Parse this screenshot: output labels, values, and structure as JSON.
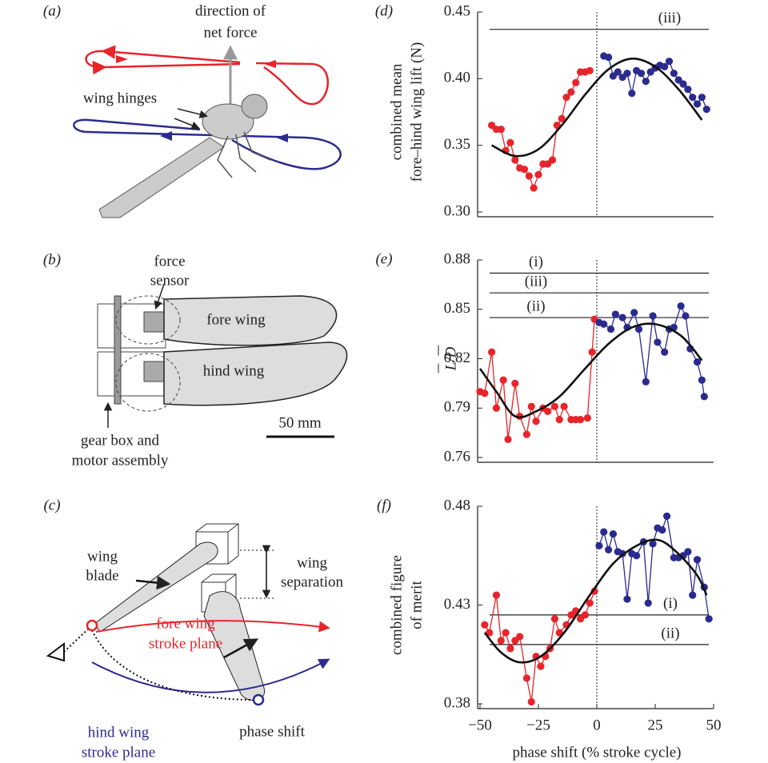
{
  "diagrams": {
    "a": {
      "label": "(a)",
      "force_line1": "direction of",
      "force_line2": "net force",
      "hinges": "wing hinges"
    },
    "b": {
      "label": "(b)",
      "sensor_line1": "force",
      "sensor_line2": "sensor",
      "fore": "fore wing",
      "hind": "hind wing",
      "scale": "50 mm",
      "gear_line1": "gear box and",
      "gear_line2": "motor assembly"
    },
    "c": {
      "label": "(c)",
      "blade_line1": "wing",
      "blade_line2": "blade",
      "sep_line1": "wing",
      "sep_line2": "separation",
      "fore_line1": "fore wing",
      "fore_line2": "stroke plane",
      "hind_line1": "hind wing",
      "hind_line2": "stroke plane",
      "phase": "phase shift"
    }
  },
  "chart_data": [
    {
      "type": "line",
      "panel_label": "(d)",
      "ylabel": [
        "combined mean",
        "fore–hind wing lift (N)"
      ],
      "xlim": [
        -50,
        50
      ],
      "ylim": [
        0.3,
        0.45
      ],
      "yticks": [
        {
          "value": 0.3,
          "label": "0.30"
        },
        0.35,
        {
          "value": 0.4,
          "label": "0.40"
        },
        0.45
      ],
      "vline": 0,
      "hlines": [
        {
          "label": "(iii)",
          "value": 0.437
        }
      ],
      "series": [
        {
          "color": "#e8242b",
          "markers": true,
          "x": [
            -45,
            -43,
            -41,
            -39,
            -37,
            -35,
            -33,
            -31,
            -29,
            -27,
            -25,
            -23,
            -21,
            -19,
            -17,
            -15,
            -13,
            -11,
            -9,
            -7,
            -5,
            -3
          ],
          "values": [
            0.365,
            0.362,
            0.362,
            0.346,
            0.352,
            0.339,
            0.333,
            0.332,
            0.327,
            0.318,
            0.328,
            0.336,
            0.336,
            0.339,
            0.365,
            0.37,
            0.386,
            0.39,
            0.397,
            0.405,
            0.405,
            0.406
          ]
        },
        {
          "color": "#2b2b8f",
          "markers": true,
          "x": [
            3,
            5,
            7,
            9,
            11,
            13,
            15,
            17,
            19,
            21,
            23,
            25,
            27,
            29,
            31,
            33,
            35,
            37,
            39,
            41,
            43,
            45,
            47
          ],
          "values": [
            0.417,
            0.416,
            0.402,
            0.405,
            0.401,
            0.404,
            0.389,
            0.406,
            0.404,
            0.398,
            0.405,
            0.408,
            0.41,
            0.409,
            0.413,
            0.404,
            0.399,
            0.396,
            0.392,
            0.386,
            0.381,
            0.386,
            0.377
          ]
        },
        {
          "color": "#111111",
          "markers": false,
          "x": [
            -45,
            -35,
            -25,
            -15,
            -5,
            5,
            15,
            25,
            35,
            45
          ],
          "values": [
            0.35,
            0.342,
            0.347,
            0.365,
            0.388,
            0.407,
            0.415,
            0.409,
            0.392,
            0.369
          ]
        }
      ]
    },
    {
      "type": "line",
      "panel_label": "(e)",
      "ylabel": [
        "L/D"
      ],
      "xlim": [
        -50,
        50
      ],
      "ylim": [
        0.76,
        0.88
      ],
      "yticks": [
        0.76,
        0.79,
        0.82,
        0.85,
        0.88
      ],
      "vline": 0,
      "hlines": [
        {
          "label": "(i)",
          "value": 0.872
        },
        {
          "label": "(iii)",
          "value": 0.86
        },
        {
          "label": "(ii)",
          "value": 0.845
        }
      ],
      "series": [
        {
          "color": "#e8242b",
          "markers": true,
          "x": [
            -50,
            -48,
            -45,
            -43,
            -40,
            -38,
            -35,
            -33,
            -30,
            -28,
            -26,
            -23,
            -21,
            -18,
            -16,
            -14,
            -11,
            -9,
            -7,
            -4,
            -2,
            -1
          ],
          "values": [
            0.8,
            0.799,
            0.824,
            0.79,
            0.807,
            0.771,
            0.805,
            0.785,
            0.774,
            0.791,
            0.782,
            0.79,
            0.788,
            0.791,
            0.783,
            0.791,
            0.783,
            0.783,
            0.783,
            0.784,
            0.824,
            0.844
          ]
        },
        {
          "color": "#2b2b8f",
          "markers": true,
          "x": [
            1,
            3,
            6,
            8,
            11,
            13,
            16,
            18,
            21,
            24,
            26,
            29,
            31,
            33,
            36,
            38,
            40,
            43,
            45,
            46
          ],
          "values": [
            0.842,
            0.841,
            0.838,
            0.847,
            0.845,
            0.839,
            0.848,
            0.838,
            0.806,
            0.846,
            0.83,
            0.824,
            0.838,
            0.839,
            0.852,
            0.846,
            0.826,
            0.818,
            0.807,
            0.797
          ]
        },
        {
          "color": "#111111",
          "markers": false,
          "x": [
            -50,
            -43,
            -35,
            -26,
            -16,
            -5,
            5,
            15,
            25,
            36,
            45
          ],
          "values": [
            0.814,
            0.8,
            0.785,
            0.788,
            0.797,
            0.814,
            0.829,
            0.839,
            0.841,
            0.834,
            0.819
          ]
        }
      ]
    },
    {
      "type": "line",
      "panel_label": "(f)",
      "ylabel": [
        "combined figure",
        "of merit"
      ],
      "xlabel": "phase shift (% stroke cycle)",
      "xlim": [
        -50,
        50
      ],
      "ylim": [
        0.38,
        0.48
      ],
      "xticks": [
        {
          "value": -50,
          "label": "−50"
        },
        {
          "value": -25,
          "label": "−25"
        },
        0,
        25,
        50
      ],
      "yticks": [
        0.38,
        0.43,
        0.48
      ],
      "vline": 0,
      "hlines": [
        {
          "label": "(i)",
          "value": 0.425
        },
        {
          "label": "(ii)",
          "value": 0.41
        }
      ],
      "series": [
        {
          "color": "#e8242b",
          "markers": true,
          "x": [
            -48,
            -46,
            -43,
            -41,
            -39,
            -37,
            -35,
            -33,
            -30,
            -28,
            -26,
            -24,
            -22,
            -20,
            -18,
            -16,
            -13,
            -11,
            -9,
            -7,
            -5,
            -3,
            -1
          ],
          "values": [
            0.42,
            0.416,
            0.435,
            0.412,
            0.416,
            0.408,
            0.412,
            0.414,
            0.393,
            0.381,
            0.404,
            0.399,
            0.404,
            0.408,
            0.423,
            0.416,
            0.42,
            0.425,
            0.427,
            0.423,
            0.425,
            0.431,
            0.437
          ]
        },
        {
          "color": "#2b2b8f",
          "markers": true,
          "x": [
            1,
            3,
            5,
            7,
            9,
            11,
            13,
            15,
            17,
            20,
            22,
            24,
            26,
            28,
            30,
            33,
            35,
            37,
            39,
            41,
            43,
            46,
            48
          ],
          "values": [
            0.46,
            0.467,
            0.458,
            0.466,
            0.457,
            0.456,
            0.433,
            0.456,
            0.455,
            0.462,
            0.431,
            0.461,
            0.469,
            0.468,
            0.475,
            0.454,
            0.454,
            0.455,
            0.457,
            0.435,
            0.453,
            0.439,
            0.423
          ]
        },
        {
          "color": "#111111",
          "markers": false,
          "x": [
            -48,
            -41,
            -33,
            -24,
            -14,
            -3,
            7,
            17,
            26,
            34,
            43,
            47
          ],
          "values": [
            0.416,
            0.406,
            0.401,
            0.404,
            0.416,
            0.435,
            0.451,
            0.46,
            0.463,
            0.457,
            0.445,
            0.435
          ]
        }
      ]
    }
  ]
}
